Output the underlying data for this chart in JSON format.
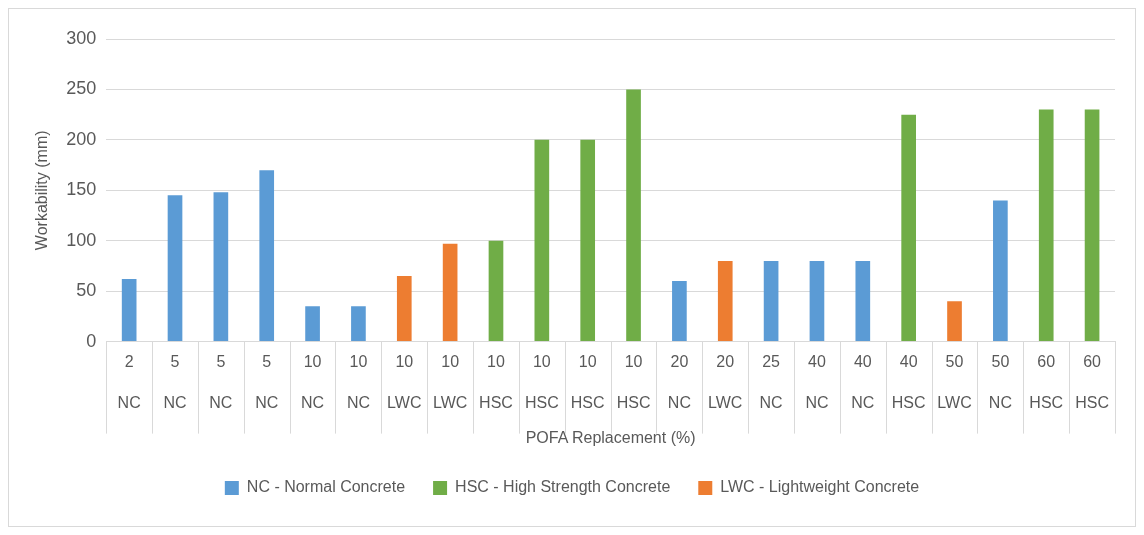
{
  "chart_data": {
    "type": "bar",
    "xlabel": "POFA Replacement (%)",
    "ylabel": "Workability (mm)",
    "categories": [
      "2\nNC",
      "5\nNC",
      "5\nNC",
      "5\nNC",
      "10\nNC",
      "10\nNC",
      "10\nLWC",
      "10\nLWC",
      "10\nHSC",
      "10\nHSC",
      "10\nHSC",
      "10\nHSC",
      "20\nNC",
      "20\nLWC",
      "25\nNC",
      "40\nNC",
      "40\nNC",
      "40\nHSC",
      "50\nLWC",
      "50\nNC",
      "60\nHSC",
      "60\nHSC"
    ],
    "series": [
      {
        "name": "NC - Normal Concrete",
        "color": "#5b9bd5",
        "values": [
          62,
          145,
          148,
          170,
          35,
          35,
          null,
          null,
          null,
          null,
          null,
          null,
          60,
          null,
          80,
          80,
          80,
          null,
          null,
          140,
          null,
          null
        ]
      },
      {
        "name": "HSC - High Strength Concrete",
        "color": "#70ad47",
        "values": [
          null,
          null,
          null,
          null,
          null,
          null,
          null,
          null,
          100,
          200,
          200,
          250,
          null,
          null,
          null,
          null,
          null,
          225,
          null,
          null,
          230,
          230
        ]
      },
      {
        "name": "LWC - Lightweight Concrete",
        "color": "#ed7d31",
        "values": [
          null,
          null,
          null,
          null,
          null,
          null,
          65,
          97,
          null,
          null,
          null,
          null,
          null,
          80,
          null,
          null,
          null,
          null,
          40,
          null,
          null,
          null
        ]
      }
    ],
    "ylim": [
      0,
      300
    ],
    "yticks": [
      0,
      50,
      100,
      150,
      200,
      250,
      300
    ],
    "grid": "y",
    "legend": "bottom"
  }
}
